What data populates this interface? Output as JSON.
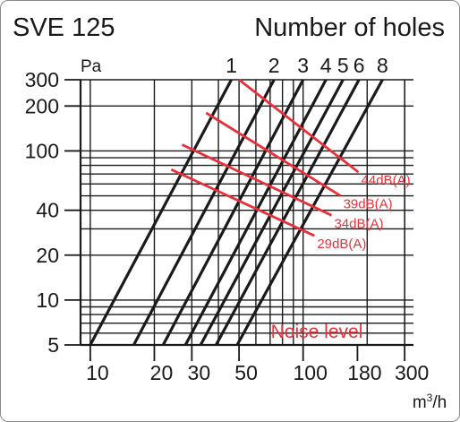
{
  "chart_data": {
    "type": "line",
    "title": "SVE 125",
    "legend_title": "Number of holes",
    "xlabel_html": "m<sup>3</sup>/h",
    "xlabel_base": "m",
    "xlabel_sup": "3",
    "xlabel_tail": "/h",
    "ylabel": "Pa",
    "x_scale": "log",
    "y_scale": "log",
    "xlim": [
      9,
      330
    ],
    "ylim": [
      5,
      300
    ],
    "x_ticks": [
      10,
      20,
      30,
      50,
      100,
      180,
      300
    ],
    "y_ticks": [
      5,
      10,
      20,
      40,
      100,
      200,
      300
    ],
    "grid": true,
    "series": [
      {
        "name": "1",
        "points": [
          [
            10,
            5
          ],
          [
            46,
            300
          ]
        ]
      },
      {
        "name": "2",
        "points": [
          [
            16,
            5
          ],
          [
            73,
            300
          ]
        ]
      },
      {
        "name": "3",
        "points": [
          [
            22,
            5
          ],
          [
            100,
            300
          ]
        ]
      },
      {
        "name": "4",
        "points": [
          [
            28,
            5
          ],
          [
            128,
            300
          ]
        ]
      },
      {
        "name": "5",
        "points": [
          [
            33,
            5
          ],
          [
            154,
            300
          ]
        ]
      },
      {
        "name": "6",
        "points": [
          [
            39,
            5
          ],
          [
            183,
            300
          ]
        ]
      },
      {
        "name": "8",
        "points": [
          [
            49,
            5
          ],
          [
            236,
            300
          ]
        ]
      }
    ],
    "noise_lines": [
      {
        "label": "44dB(A)",
        "points": [
          [
            50,
            300
          ],
          [
            182,
            72
          ]
        ]
      },
      {
        "label": "39dB(A)",
        "points": [
          [
            35,
            180
          ],
          [
            150,
            50
          ]
        ]
      },
      {
        "label": "34dB(A)",
        "points": [
          [
            27,
            110
          ],
          [
            136,
            37
          ]
        ]
      },
      {
        "label": "29dB(A)",
        "points": [
          [
            24,
            75
          ],
          [
            113,
            27
          ]
        ]
      }
    ],
    "annotation": "Noise level",
    "colors": {
      "curves": "#1a1a1a",
      "noise": "#e8303a",
      "grid": "#1a1a1a"
    }
  }
}
